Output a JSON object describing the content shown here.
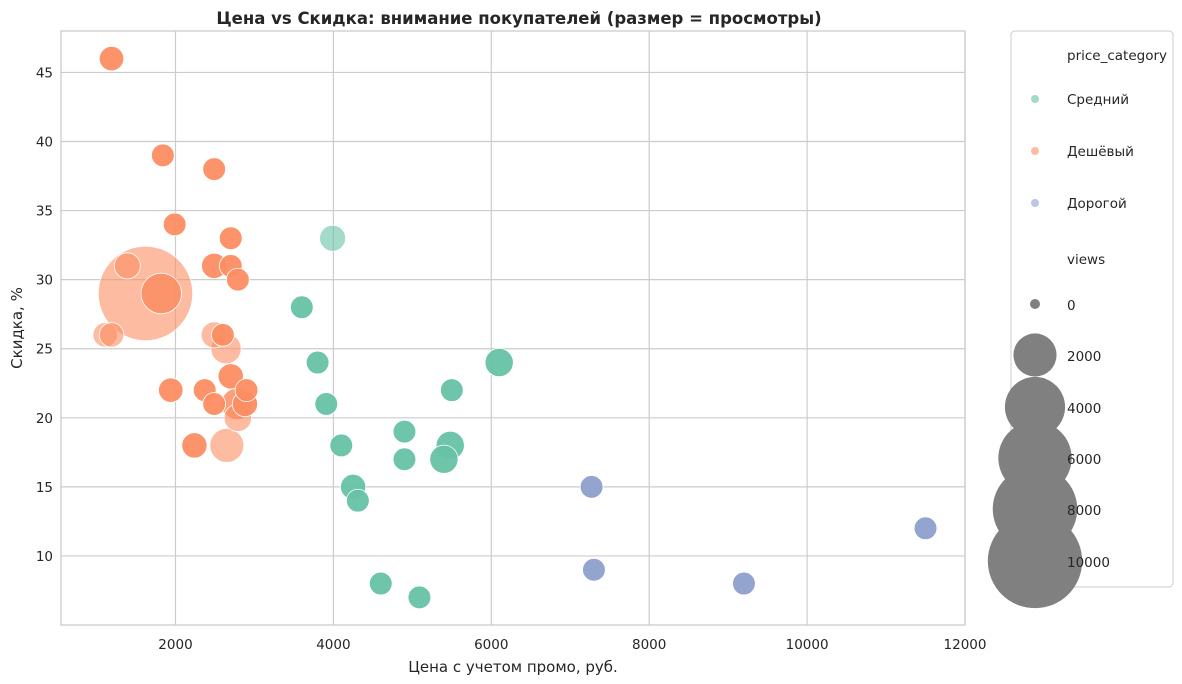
{
  "chart_data": {
    "type": "scatter",
    "title": "Цена vs Скидка: внимание покупателей (размер = просмотры)",
    "xlabel": "Цена с учетом промо, руб.",
    "ylabel": "Скидка, %",
    "xlim": [
      550,
      12000
    ],
    "ylim": [
      5,
      48
    ],
    "x_ticks": [
      2000,
      4000,
      6000,
      8000,
      10000,
      12000
    ],
    "y_ticks": [
      10,
      15,
      20,
      25,
      30,
      35,
      40,
      45
    ],
    "grid": true,
    "legend_position": "outside-right",
    "size_by": "views",
    "hue_by": "price_category",
    "series": [
      {
        "name": "Средний",
        "color": "#66c2a5",
        "points": [
          {
            "x": 3990,
            "y": 33,
            "views": 700,
            "alpha": 0.6
          },
          {
            "x": 3600,
            "y": 28,
            "views": 500
          },
          {
            "x": 6100,
            "y": 24,
            "views": 850
          },
          {
            "x": 3800,
            "y": 24,
            "views": 500
          },
          {
            "x": 5500,
            "y": 22,
            "views": 500
          },
          {
            "x": 3910,
            "y": 21,
            "views": 500
          },
          {
            "x": 4900,
            "y": 19,
            "views": 500
          },
          {
            "x": 4100,
            "y": 18,
            "views": 500
          },
          {
            "x": 5480,
            "y": 18,
            "views": 850
          },
          {
            "x": 4900,
            "y": 17,
            "views": 500
          },
          {
            "x": 5400,
            "y": 17,
            "views": 850
          },
          {
            "x": 4250,
            "y": 15,
            "views": 650
          },
          {
            "x": 4310,
            "y": 14,
            "views": 500
          },
          {
            "x": 4600,
            "y": 8,
            "views": 500
          },
          {
            "x": 5090,
            "y": 7,
            "views": 500
          }
        ]
      },
      {
        "name": "Дешёвый",
        "color": "#fc8d62",
        "points": [
          {
            "x": 1190,
            "y": 46,
            "views": 600
          },
          {
            "x": 1840,
            "y": 39,
            "views": 500
          },
          {
            "x": 2490,
            "y": 38,
            "views": 500
          },
          {
            "x": 1990,
            "y": 34,
            "views": 500
          },
          {
            "x": 2700,
            "y": 33,
            "views": 500
          },
          {
            "x": 1390,
            "y": 31,
            "views": 700,
            "alpha": 0.6
          },
          {
            "x": 2490,
            "y": 31,
            "views": 650
          },
          {
            "x": 2700,
            "y": 31,
            "views": 500
          },
          {
            "x": 2790,
            "y": 30,
            "views": 500
          },
          {
            "x": 1620,
            "y": 29,
            "views": 11000,
            "alpha": 0.6
          },
          {
            "x": 1820,
            "y": 29,
            "views": 1900,
            "alpha": 0.85
          },
          {
            "x": 1110,
            "y": 26,
            "views": 600,
            "alpha": 0.6
          },
          {
            "x": 1190,
            "y": 26,
            "views": 600,
            "alpha": 0.6
          },
          {
            "x": 2490,
            "y": 26,
            "views": 700,
            "alpha": 0.6
          },
          {
            "x": 2600,
            "y": 26,
            "views": 500
          },
          {
            "x": 2640,
            "y": 25,
            "views": 1000,
            "alpha": 0.6
          },
          {
            "x": 2700,
            "y": 23,
            "views": 650
          },
          {
            "x": 1940,
            "y": 22,
            "views": 600
          },
          {
            "x": 2370,
            "y": 22,
            "views": 500
          },
          {
            "x": 2900,
            "y": 22,
            "views": 500
          },
          {
            "x": 2490,
            "y": 21,
            "views": 500
          },
          {
            "x": 2780,
            "y": 21,
            "views": 1100,
            "alpha": 0.85
          },
          {
            "x": 2880,
            "y": 21,
            "views": 650
          },
          {
            "x": 2790,
            "y": 20,
            "views": 800,
            "alpha": 0.6
          },
          {
            "x": 2240,
            "y": 18,
            "views": 650
          },
          {
            "x": 2650,
            "y": 18,
            "views": 1300,
            "alpha": 0.6
          }
        ]
      },
      {
        "name": "Дорогой",
        "color": "#8da0cb",
        "points": [
          {
            "x": 7270,
            "y": 15,
            "views": 500
          },
          {
            "x": 11500,
            "y": 12,
            "views": 500
          },
          {
            "x": 7300,
            "y": 9,
            "views": 500
          },
          {
            "x": 9200,
            "y": 8,
            "views": 500
          }
        ]
      }
    ],
    "legend": {
      "hue_title": "price_category",
      "size_title": "views",
      "size_entries": [
        {
          "label": "0",
          "views": 0
        },
        {
          "label": "2000",
          "views": 2000
        },
        {
          "label": "4000",
          "views": 4000
        },
        {
          "label": "6000",
          "views": 6000
        },
        {
          "label": "8000",
          "views": 8000
        },
        {
          "label": "10000",
          "views": 10000
        }
      ],
      "size_color": "#808080"
    }
  }
}
